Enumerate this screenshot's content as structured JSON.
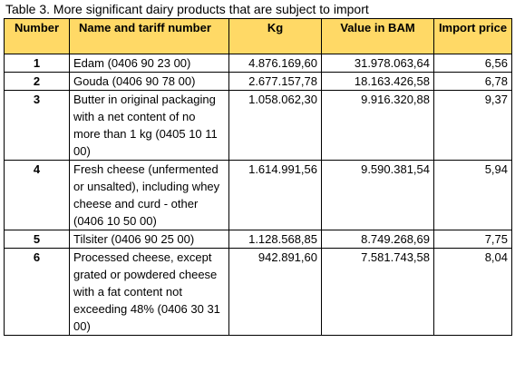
{
  "caption": "Table 3. More significant dairy products that are subject to import",
  "columns": {
    "number": "Number",
    "name": "Name and tariff number",
    "kg": "Kg",
    "value": "Value in BAM",
    "price": "Import price"
  },
  "rows": [
    {
      "number": "1",
      "name": "Edam (0406 90 23 00)",
      "kg": "4.876.169,60",
      "value": "31.978.063,64",
      "price": "6,56"
    },
    {
      "number": "2",
      "name": "Gouda (0406 90 78 00)",
      "kg": "2.677.157,78",
      "value": "18.163.426,58",
      "price": "6,78"
    },
    {
      "number": "3",
      "name": "Butter in original packaging with a net content of no more than 1 kg (0405 10 11 00)",
      "kg": "1.058.062,30",
      "value": "9.916.320,88",
      "price": "9,37"
    },
    {
      "number": "4",
      "name": "Fresh cheese (unfermented or unsalted), including whey cheese and curd - other",
      "name_code": "(0406 10 50 00)",
      "kg": "1.614.991,56",
      "value": "9.590.381,54",
      "price": "5,94"
    },
    {
      "number": "5",
      "name": "Tilsiter (0406 90 25 00)",
      "kg": "1.128.568,85",
      "value": "8.749.268,69",
      "price": "7,75"
    },
    {
      "number": "6",
      "name": "Processed cheese, except grated or powdered cheese with a fat content not exceeding 48% (0406 30 31 00)",
      "kg": "942.891,60",
      "value": "7.581.743,58",
      "price": "8,04"
    }
  ]
}
